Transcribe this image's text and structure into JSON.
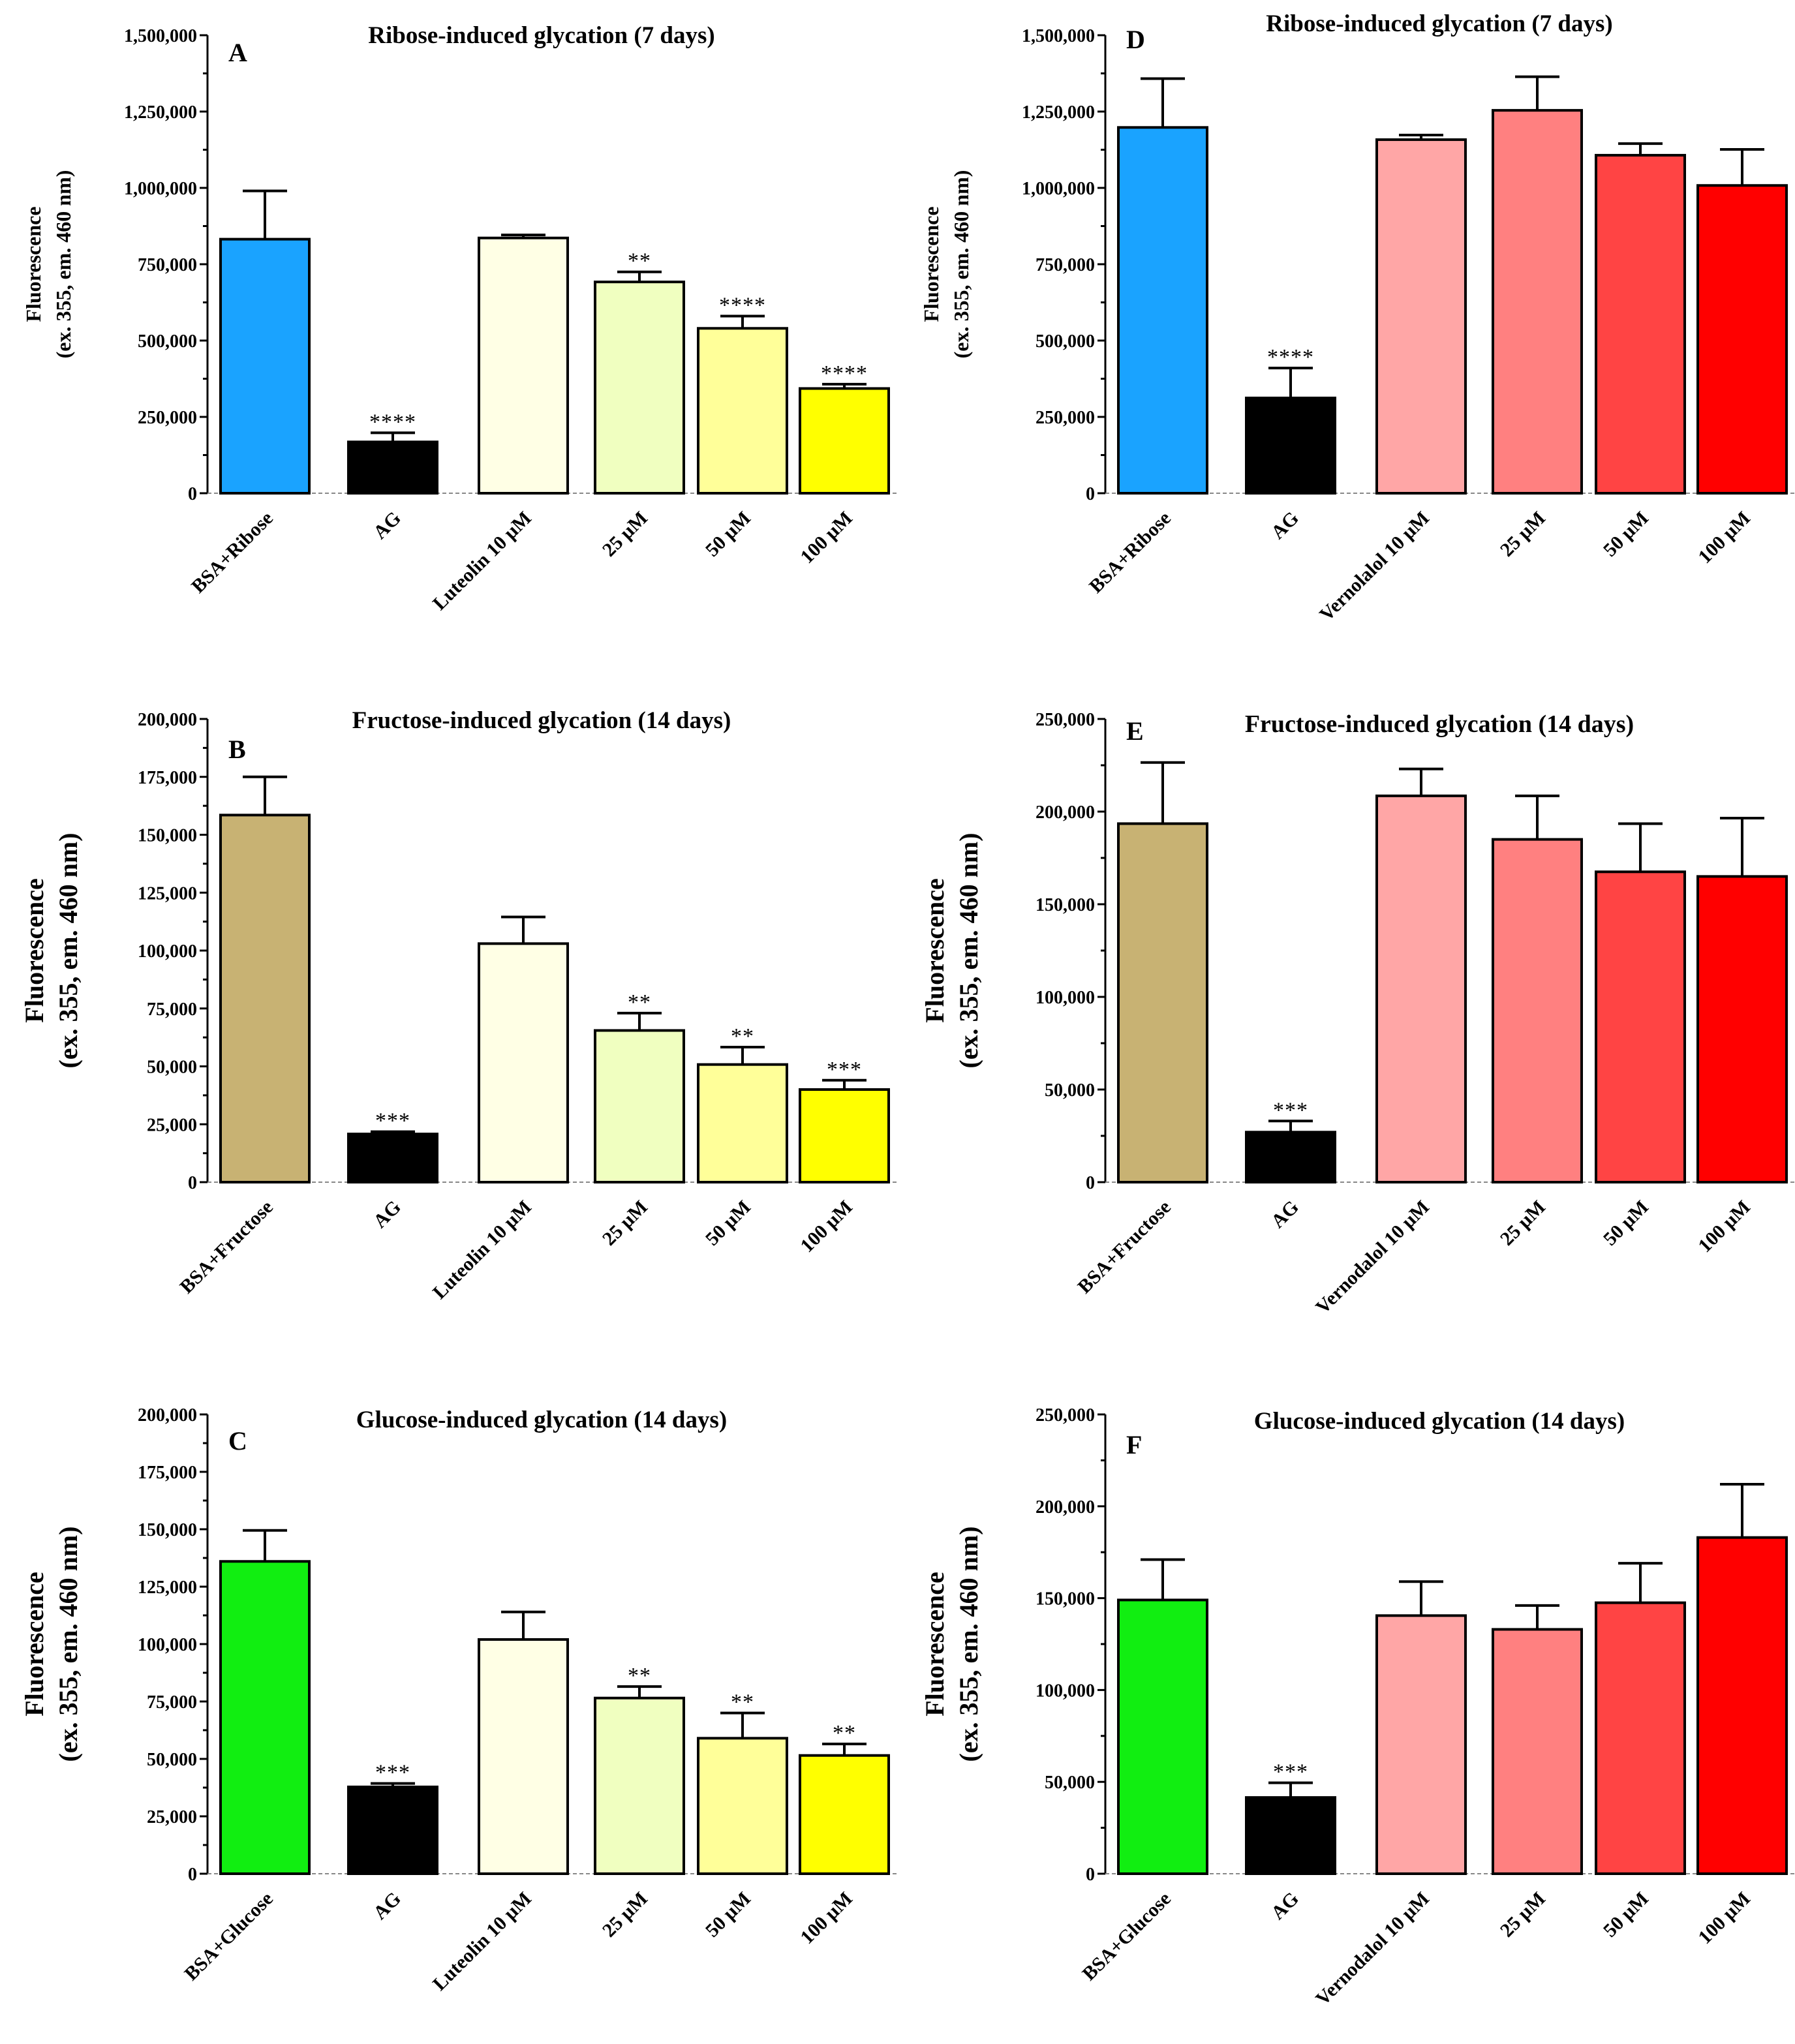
{
  "chart_data": [
    {
      "id": "A",
      "letter": "A",
      "type": "bar",
      "title": "Ribose-induced glycation (7 days)",
      "ylabel": [
        "Fluorescence",
        "(ex. 355, em. 460 nm)"
      ],
      "ylim": [
        0,
        1500000
      ],
      "yticks": [
        0,
        250000,
        500000,
        750000,
        1000000,
        1250000,
        1500000
      ],
      "ytick_labels": [
        "0",
        "250,000",
        "500,000",
        "750,000",
        "1,000,000",
        "1,250,000",
        "1,500,000"
      ],
      "categories": [
        "BSA+Ribose",
        "AG",
        "Luteolin 10 µM",
        "25 µM",
        "50 µM",
        "100 µM"
      ],
      "values": [
        832000,
        168000,
        836000,
        692000,
        540000,
        343000
      ],
      "errors": [
        158000,
        30000,
        10000,
        33000,
        40000,
        14000
      ],
      "significance": [
        "",
        "****",
        "",
        "**",
        "****",
        "****"
      ],
      "colors": [
        "#1aa3ff",
        "#000000",
        "#ffffe5",
        "#f0ffc0",
        "#ffff99",
        "#ffff00"
      ]
    },
    {
      "id": "D",
      "letter": "D",
      "type": "bar",
      "title": "Ribose-induced glycation (7 days)",
      "ylabel": [
        "Fluorescence",
        "(ex. 355, em. 460 nm)"
      ],
      "ylim": [
        0,
        1500000
      ],
      "yticks": [
        0,
        250000,
        500000,
        750000,
        1000000,
        1250000,
        1500000
      ],
      "ytick_labels": [
        "0",
        "250,000",
        "500,000",
        "750,000",
        "1,000,000",
        "1,250,000",
        "1,500,000"
      ],
      "categories": [
        "BSA+Ribose",
        "AG",
        "Vernolalol 10 µM",
        "25 µM",
        "50 µM",
        "100 µM"
      ],
      "values": [
        1198000,
        312000,
        1158000,
        1254000,
        1107000,
        1008000
      ],
      "errors": [
        160000,
        98000,
        15000,
        110000,
        38000,
        118000
      ],
      "significance": [
        "",
        "****",
        "",
        "",
        "",
        ""
      ],
      "colors": [
        "#1aa3ff",
        "#000000",
        "#ffa6a6",
        "#ff8080",
        "#ff4444",
        "#ff0000"
      ]
    },
    {
      "id": "B",
      "letter": "B",
      "type": "bar",
      "title": "Fructose-induced glycation (14 days)",
      "ylabel": [
        "Fluorescence",
        "(ex. 355, em. 460 nm)"
      ],
      "ylim": [
        0,
        200000
      ],
      "yticks": [
        0,
        25000,
        50000,
        75000,
        100000,
        125000,
        150000,
        175000,
        200000
      ],
      "ytick_labels": [
        "0",
        "25,000",
        "50,000",
        "75,000",
        "100,000",
        "125,000",
        "150,000",
        "175,000",
        "200,000"
      ],
      "categories": [
        "BSA+Fructose",
        "AG",
        "Luteolin 10 µM",
        "25 µM",
        "50 µM",
        "100 µM"
      ],
      "values": [
        158500,
        20800,
        103000,
        65500,
        50800,
        40000
      ],
      "errors": [
        16500,
        1000,
        11500,
        7500,
        7500,
        4000
      ],
      "significance": [
        "",
        "***",
        "",
        "**",
        "**",
        "***"
      ],
      "colors": [
        "#c8b273",
        "#000000",
        "#ffffe5",
        "#f0ffc0",
        "#ffff99",
        "#ffff00"
      ]
    },
    {
      "id": "E",
      "letter": "E",
      "type": "bar",
      "title": "Fructose-induced glycation (14 days)",
      "ylabel": [
        "Fluorescence",
        "(ex. 355, em. 460 nm)"
      ],
      "ylim": [
        0,
        250000
      ],
      "yticks": [
        0,
        50000,
        100000,
        150000,
        200000,
        250000
      ],
      "ytick_labels": [
        "0",
        "50,000",
        "100,000",
        "150,000",
        "200,000",
        "250,000"
      ],
      "categories": [
        "BSA+Fructose",
        "AG",
        "Vernodalol 10 µM",
        "25 µM",
        "50 µM",
        "100 µM"
      ],
      "values": [
        193500,
        27000,
        208500,
        185000,
        167500,
        165000
      ],
      "errors": [
        33000,
        6000,
        14500,
        23500,
        26000,
        31500
      ],
      "significance": [
        "",
        "***",
        "",
        "",
        "",
        ""
      ],
      "colors": [
        "#c8b273",
        "#000000",
        "#ffa6a6",
        "#ff8080",
        "#ff4444",
        "#ff0000"
      ]
    },
    {
      "id": "C",
      "letter": "C",
      "type": "bar",
      "title": "Glucose-induced glycation (14 days)",
      "ylabel": [
        "Fluorescence",
        "(ex. 355, em. 460 nm)"
      ],
      "ylim": [
        0,
        200000
      ],
      "yticks": [
        0,
        25000,
        50000,
        75000,
        100000,
        125000,
        150000,
        175000,
        200000
      ],
      "ytick_labels": [
        "0",
        "25,000",
        "50,000",
        "75,000",
        "100,000",
        "125,000",
        "150,000",
        "175,000",
        "200,000"
      ],
      "categories": [
        "BSA+Glucose",
        "AG",
        "Luteolin 10 µM",
        "25 µM",
        "50 µM",
        "100 µM"
      ],
      "values": [
        136000,
        37800,
        102000,
        76500,
        59000,
        51500
      ],
      "errors": [
        13500,
        1500,
        12000,
        5000,
        11000,
        5000
      ],
      "significance": [
        "",
        "***",
        "",
        "**",
        "**",
        "**"
      ],
      "colors": [
        "#11ee11",
        "#000000",
        "#ffffe5",
        "#f0ffc0",
        "#ffff99",
        "#ffff00"
      ]
    },
    {
      "id": "F",
      "letter": "F",
      "type": "bar",
      "title": "Glucose-induced glycation (14 days)",
      "ylabel": [
        "Fluorescence",
        "(ex. 355, em. 460 nm)"
      ],
      "ylim": [
        0,
        250000
      ],
      "yticks": [
        0,
        50000,
        100000,
        150000,
        200000,
        250000
      ],
      "ytick_labels": [
        "0",
        "50,000",
        "100,000",
        "150,000",
        "200,000",
        "250,000"
      ],
      "categories": [
        "BSA+Glucose",
        "AG",
        "Vernodalol 10 µM",
        "25 µM",
        "50 µM",
        "100 µM"
      ],
      "values": [
        149000,
        41500,
        140500,
        133000,
        147500,
        183000
      ],
      "errors": [
        22000,
        8000,
        18500,
        13000,
        21500,
        29000
      ],
      "significance": [
        "",
        "***",
        "",
        "",
        "",
        ""
      ],
      "colors": [
        "#11ee11",
        "#000000",
        "#ffa6a6",
        "#ff8080",
        "#ff4444",
        "#ff0000"
      ]
    }
  ]
}
